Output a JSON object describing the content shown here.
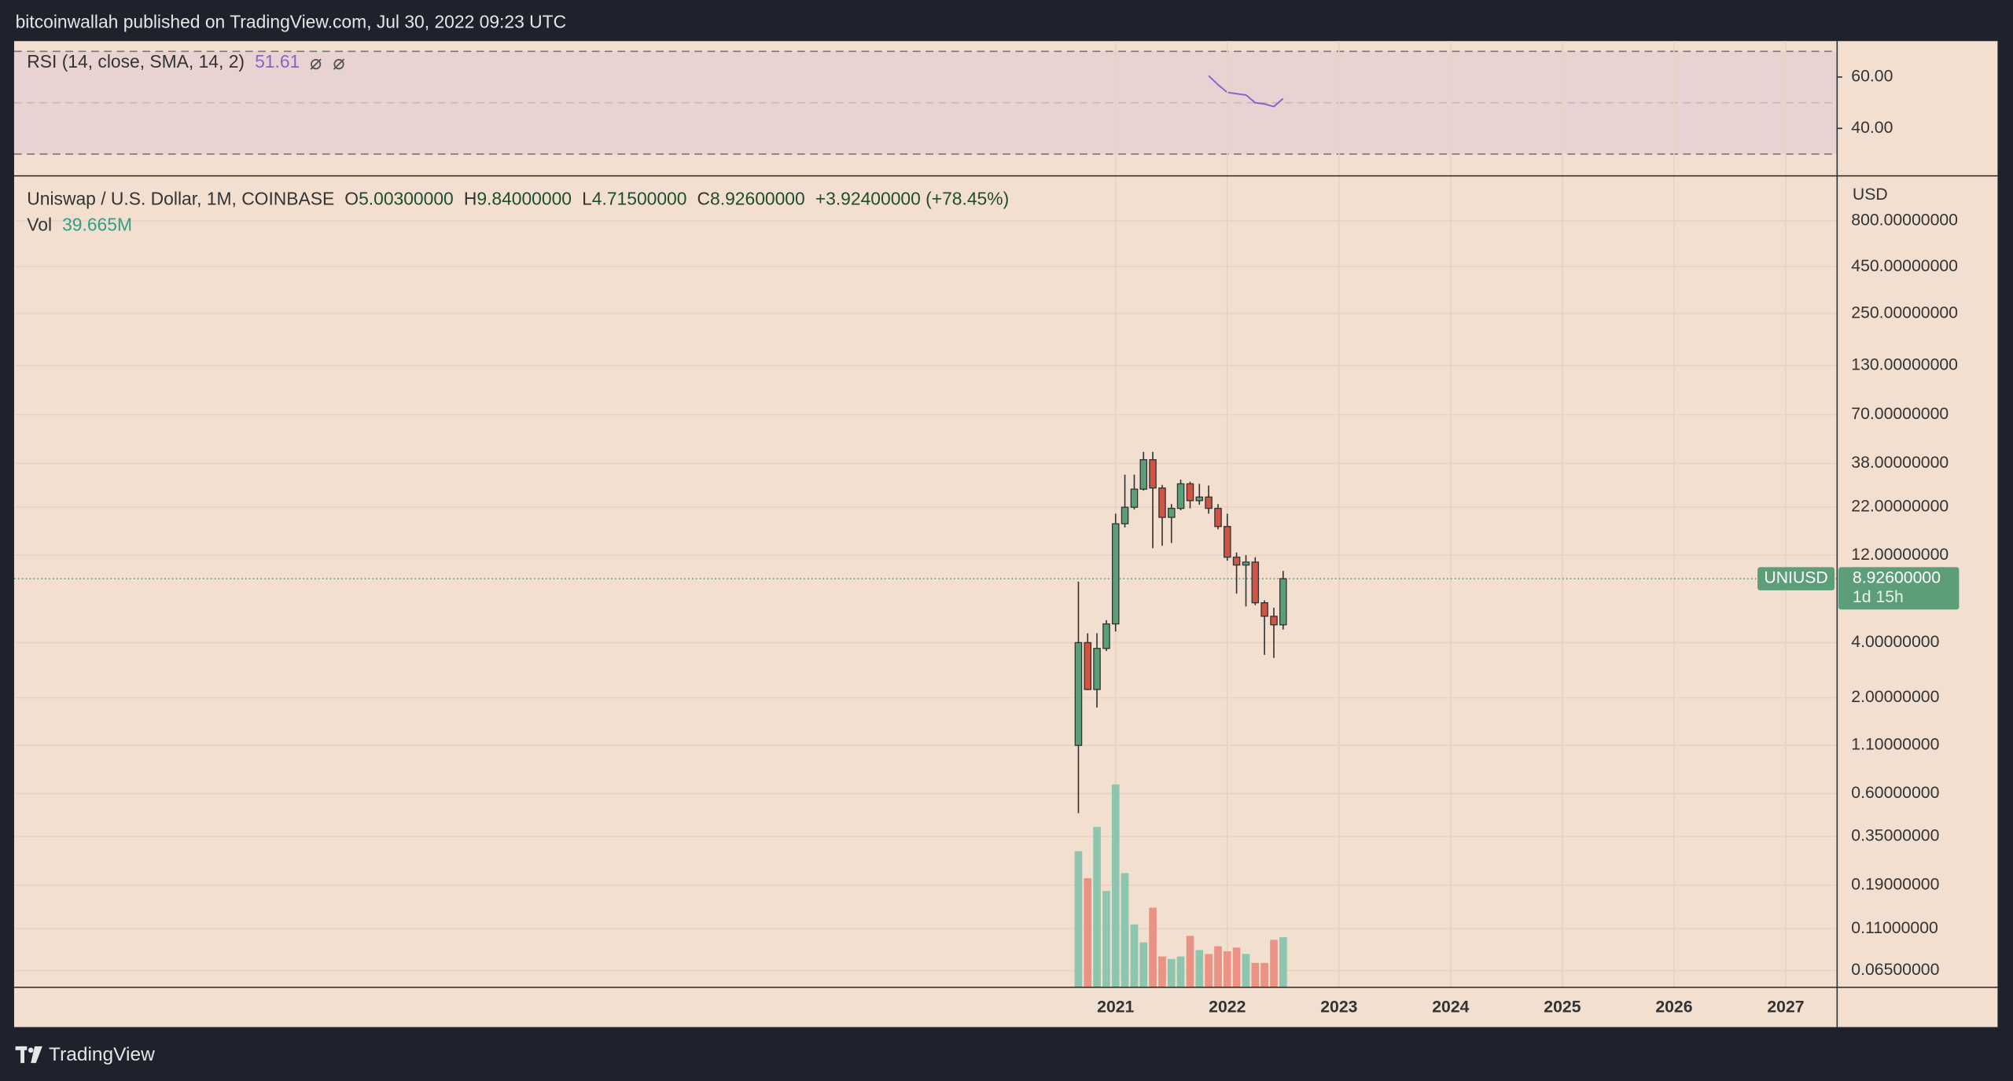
{
  "header": {
    "publisher": "bitcoinwallah published on TradingView.com, Jul 30, 2022 09:23 UTC"
  },
  "chart_data": {
    "type": "candlestick",
    "title": "Uniswap / U.S. Dollar, 1M, COINBASE",
    "ohlc_legend": [
      {
        "label": "O",
        "value": "5.00300000"
      },
      {
        "label": "H",
        "value": "9.84000000"
      },
      {
        "label": "L",
        "value": "4.71500000"
      },
      {
        "label": "C",
        "value": "8.92600000"
      }
    ],
    "change": "+3.92400000 (+78.45%)",
    "x": [
      2020.667,
      2020.75,
      2020.833,
      2020.917,
      2021,
      2021.083,
      2021.167,
      2021.25,
      2021.333,
      2021.417,
      2021.5,
      2021.583,
      2021.667,
      2021.75,
      2021.833,
      2021.917,
      2022,
      2022.083,
      2022.167,
      2022.25,
      2022.333,
      2022.417,
      2022.5
    ],
    "open": [
      1.1,
      4.0,
      2.22,
      3.72,
      5.06,
      17.8,
      21.9,
      27.5,
      39.8,
      27.9,
      19.3,
      21.6,
      29.4,
      23.8,
      24.9,
      21.6,
      17.2,
      11.7,
      10.6,
      11.0,
      6.6,
      5.57,
      5.003
    ],
    "high": [
      8.6,
      4.5,
      4.5,
      5.3,
      20.2,
      33,
      33,
      43.9,
      43.9,
      29,
      22.8,
      31,
      30.2,
      29.4,
      28.8,
      22.8,
      20.2,
      12.4,
      12.0,
      11.7,
      6.8,
      6.2,
      9.84
    ],
    "low": [
      0.47,
      2.2,
      1.77,
      3.6,
      4.6,
      17.0,
      21.3,
      27,
      13.1,
      13.5,
      14,
      21.1,
      21.6,
      22.6,
      20.2,
      16.6,
      11.2,
      7.4,
      6.3,
      6.4,
      3.43,
      3.3,
      4.715
    ],
    "close": [
      4.0,
      2.22,
      3.72,
      5.06,
      17.8,
      21.9,
      27.5,
      39.8,
      27.9,
      19.3,
      21.6,
      29.4,
      23.8,
      24.9,
      21.6,
      17.2,
      11.7,
      10.6,
      11.0,
      6.6,
      5.57,
      5.003,
      8.926
    ],
    "up_color": "#5c9e78",
    "down_color": "#cf5444",
    "log_scale": true,
    "ylim": [
      0.0527,
      1407
    ],
    "yticks": [
      {
        "value": 800,
        "label": "800.00000000"
      },
      {
        "value": 450,
        "label": "450.00000000"
      },
      {
        "value": 250,
        "label": "250.00000000"
      },
      {
        "value": 130,
        "label": "130.00000000"
      },
      {
        "value": 70,
        "label": "70.00000000"
      },
      {
        "value": 38,
        "label": "38.00000000"
      },
      {
        "value": 22,
        "label": "22.00000000"
      },
      {
        "value": 12,
        "label": "12.00000000"
      },
      {
        "value": 4,
        "label": "4.00000000"
      },
      {
        "value": 2,
        "label": "2.00000000"
      },
      {
        "value": 1.1,
        "label": "1.10000000"
      },
      {
        "value": 0.6,
        "label": "0.60000000"
      },
      {
        "value": 0.35,
        "label": "0.35000000"
      },
      {
        "value": 0.19,
        "label": "0.19000000"
      },
      {
        "value": 0.11,
        "label": "0.11000000"
      },
      {
        "value": 0.065,
        "label": "0.06500000"
      }
    ],
    "y_unit": "USD",
    "xlim": [
      2011.138,
      2027.46
    ],
    "xticks": [
      2021,
      2022,
      2023,
      2024,
      2025,
      2026,
      2027
    ],
    "grid": true,
    "last_price": {
      "symbol": "UNIUSD",
      "value": 8.926,
      "label": "8.92600000",
      "countdown": "1d 15h",
      "color": "#5c9e78"
    },
    "volume": {
      "name": "Vol",
      "label": "39.665M",
      "values": [
        107.8,
        86.4,
        127.1,
        76.3,
        160.7,
        90.5,
        49.8,
        35.6,
        63.1,
        24.4,
        22.4,
        24.4,
        40.7,
        29.5,
        26.4,
        32.5,
        28.5,
        31.5,
        26.4,
        19.3,
        19.3,
        37.6,
        39.665
      ],
      "up_color": "#8ec5ae",
      "down_color": "#ea9385"
    },
    "rsi": {
      "name": "RSI (14, close, SMA, 14, 2)",
      "label": "51.61",
      "color": "#8a63c9",
      "values": [
        null,
        null,
        null,
        null,
        null,
        null,
        null,
        null,
        null,
        null,
        null,
        null,
        null,
        null,
        60.5,
        57,
        54,
        53.5,
        53,
        50,
        49.5,
        48.5,
        51.61
      ],
      "ylim": [
        21.5,
        74
      ],
      "yticks": [
        {
          "value": 60,
          "label": "60.00"
        },
        {
          "value": 40,
          "label": "40.00"
        }
      ],
      "band": [
        30,
        70
      ],
      "midline": 50
    }
  },
  "footer": {
    "brand": "TradingView"
  }
}
